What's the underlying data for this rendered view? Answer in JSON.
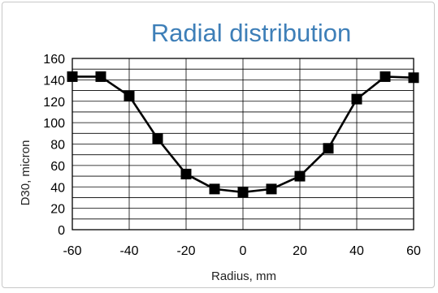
{
  "chart_data": {
    "type": "line",
    "title": "Radial distribution",
    "xlabel": "Radius, mm",
    "ylabel": "D30, micron",
    "xlim": [
      -60,
      60
    ],
    "ylim": [
      0,
      160
    ],
    "x_ticks": [
      -60,
      -40,
      -20,
      0,
      20,
      40,
      60
    ],
    "y_ticks": [
      0,
      20,
      40,
      60,
      80,
      100,
      120,
      140,
      160
    ],
    "grid": true,
    "x_grid_step": 20,
    "y_grid_step": 10,
    "series": [
      {
        "x": [
          -60,
          -50,
          -40,
          -30,
          -20,
          -10,
          0,
          10,
          20,
          30,
          40,
          50,
          60
        ],
        "y": [
          143,
          143,
          125,
          85,
          52,
          38,
          35,
          38,
          50,
          76,
          122,
          143,
          142
        ],
        "marker": "square",
        "color": "#000000"
      }
    ]
  },
  "colors": {
    "title": "#3e7fb8",
    "line": "#000000",
    "grid": "#000000"
  }
}
